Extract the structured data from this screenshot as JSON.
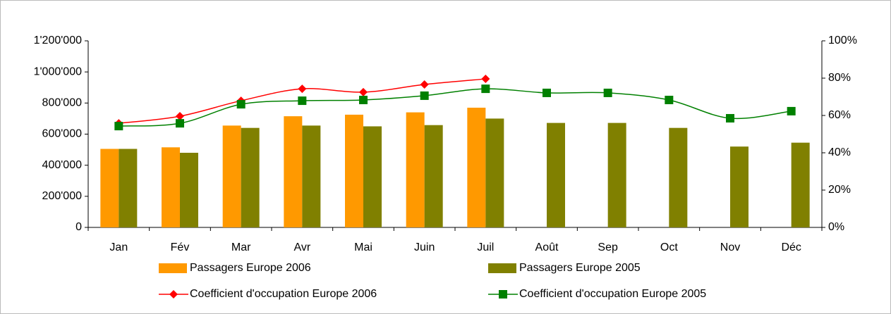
{
  "chart_data": {
    "type": "bar",
    "categories": [
      "Jan",
      "Fév",
      "Mar",
      "Avr",
      "Mai",
      "Juin",
      "Juil",
      "Août",
      "Sep",
      "Oct",
      "Nov",
      "Déc"
    ],
    "series": [
      {
        "name": "Passagers Europe 2006",
        "type": "bar",
        "color": "#ff9900",
        "values": [
          505000,
          515000,
          655000,
          715000,
          725000,
          740000,
          770000,
          null,
          null,
          null,
          null,
          null
        ]
      },
      {
        "name": "Passagers Europe 2005",
        "type": "bar",
        "color": "#808000",
        "values": [
          505000,
          480000,
          640000,
          655000,
          650000,
          658000,
          700000,
          672000,
          672000,
          640000,
          520000,
          545000
        ]
      },
      {
        "name": "Coefficient d'occupation Europe 2006",
        "type": "line",
        "axis": "y2",
        "color": "#ff0000",
        "marker": "diamond",
        "values": [
          55.8,
          59.6,
          67.9,
          74.3,
          72.5,
          76.6,
          79.6,
          null,
          null,
          null,
          null,
          null
        ]
      },
      {
        "name": "Coefficient d'occupation Europe 2005",
        "type": "line",
        "axis": "y2",
        "color": "#008000",
        "marker": "square",
        "values": [
          54.3,
          55.8,
          66,
          67.9,
          68.3,
          70.6,
          74.3,
          72.1,
          72.1,
          68.3,
          58.5,
          62.3
        ]
      }
    ],
    "ylim": [
      0,
      1200000
    ],
    "yticks": [
      0,
      {
        "value": 200000,
        "label": "200'000"
      },
      {
        "value": 400000,
        "label": "400'000"
      },
      {
        "value": 600000,
        "label": "600'000"
      },
      {
        "value": 800000,
        "label": "800'000"
      },
      {
        "value": 1000000,
        "label": "1'000'000"
      },
      {
        "value": 1200000,
        "label": "1'200'000"
      }
    ],
    "y2lim": [
      0,
      100
    ],
    "y2ticks": [
      {
        "value": 0,
        "label": "0%"
      },
      {
        "value": 20,
        "label": "20%"
      },
      {
        "value": 40,
        "label": "40%"
      },
      {
        "value": 60,
        "label": "60%"
      },
      {
        "value": 80,
        "label": "80%"
      },
      {
        "value": 100,
        "label": "100%"
      }
    ],
    "grid": false
  }
}
